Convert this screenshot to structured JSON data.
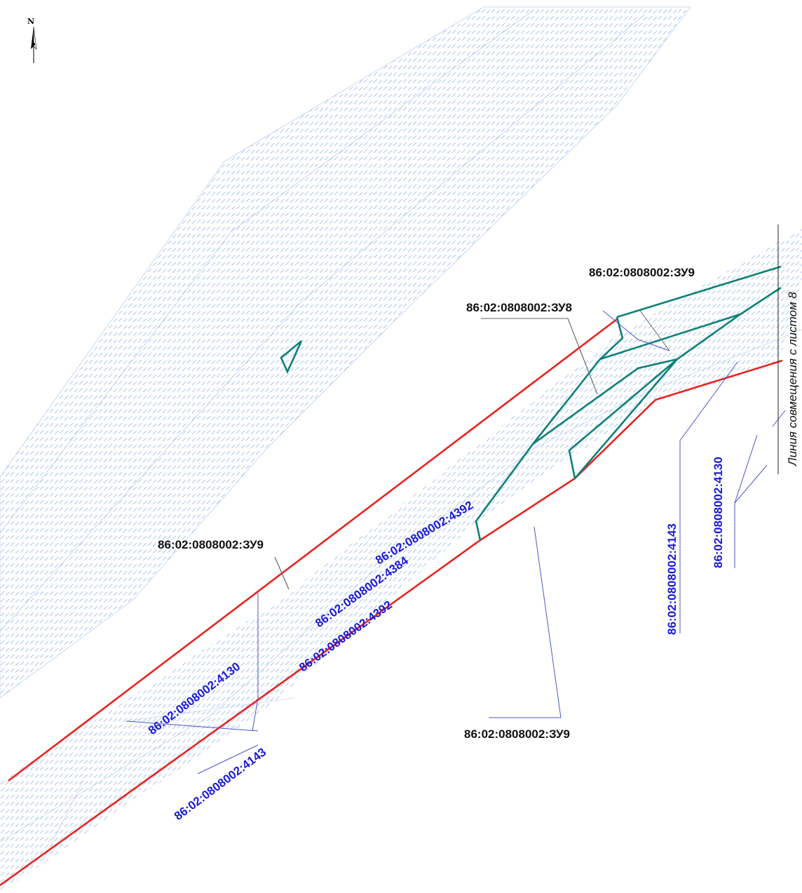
{
  "map": {
    "north_label": "N",
    "sheet_note": "Линия совмещения с листом 8",
    "colors": {
      "boundary": "#e8231f",
      "parcel": "#0e8078",
      "hatch": "#a9c4ee",
      "leader": "#4b55c8",
      "label_black": "#111111",
      "label_blue": "#1a1ad6"
    },
    "labels": {
      "zu9_top": "86:02:0808002:ЗУ9",
      "zu8": "86:02:0808002:ЗУ8",
      "zu9_left": "86:02:0808002:ЗУ9",
      "zu9_bottom": "86:02:0808002:ЗУ9",
      "p4392_upper": "86:02:0808002:4392",
      "p4384": "86:02:0808002:4384",
      "p4392_lower": "86:02:0808002:4392",
      "p4130_left": "86:02:0808002:4130",
      "p4143_bottom": "86:02:0808002:4143",
      "p4143_right": "86:02:0808002:4143",
      "p4130_right": "86:02:0808002:4130"
    }
  }
}
